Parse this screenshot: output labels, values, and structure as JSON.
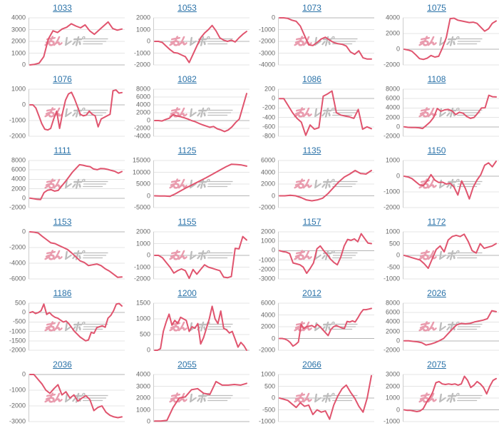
{
  "watermark": {
    "text": "みんレポ"
  },
  "style": {
    "background": "#ffffff",
    "line_color": "#e0546e",
    "grid_color": "#e4e4e4",
    "zero_line_color": "#b5b5b5",
    "axis_line_color": "#cccccc",
    "title_color": "#2a72a8",
    "tick_label_color": "#666666",
    "watermark_pink": "#e99cae",
    "watermark_gray": "#bdbdbd"
  },
  "chart_data": [
    {
      "type": "line",
      "title": "1033",
      "yticks": [
        4000,
        3000,
        2000,
        1000,
        0
      ],
      "values": [
        0,
        50,
        150,
        700,
        2200,
        2900,
        2750,
        3050,
        3200,
        3500,
        3300,
        3150,
        3400,
        2900,
        2600,
        2950,
        3300,
        3650,
        3100,
        2950,
        3050
      ]
    },
    {
      "type": "line",
      "title": "1053",
      "yticks": [
        2000,
        1000,
        0,
        -1000,
        -2000
      ],
      "values": [
        0,
        0,
        -100,
        -400,
        -700,
        -950,
        -1000,
        -1150,
        -1300,
        -1800,
        -1100,
        -400,
        300,
        700,
        1000,
        1350,
        900,
        300,
        100,
        0,
        100,
        -50,
        300,
        600,
        850
      ]
    },
    {
      "type": "line",
      "title": "1073",
      "yticks": [
        0,
        -1000,
        -2000,
        -3000,
        -4000
      ],
      "values": [
        0,
        0,
        -50,
        -200,
        -300,
        -700,
        -1500,
        -2300,
        -2350,
        -2100,
        -1800,
        -1650,
        -1900,
        -2100,
        -2200,
        -2250,
        -2400,
        -2900,
        -3100,
        -2800,
        -3400,
        -3500,
        -3500
      ]
    },
    {
      "type": "line",
      "title": "1075",
      "yticks": [
        4000,
        2000,
        0,
        -2000
      ],
      "values": [
        0,
        -100,
        -250,
        -700,
        -1200,
        -1300,
        -1150,
        -800,
        -1000,
        -900,
        200,
        1500,
        3900,
        3950,
        3700,
        3600,
        3500,
        3400,
        3450,
        3300,
        2800,
        2300,
        2600,
        3300,
        3600
      ]
    },
    {
      "type": "line",
      "title": "1076",
      "yticks": [
        1000,
        0,
        -1000,
        -2000
      ],
      "values": [
        0,
        0,
        -200,
        -700,
        -1200,
        -1550,
        -1600,
        -1500,
        -900,
        -400,
        -1500,
        -500,
        300,
        700,
        800,
        400,
        -100,
        -600,
        -700,
        -650,
        -400,
        -600,
        -700,
        -1400,
        -900,
        -800,
        -700,
        -600,
        900,
        950,
        750,
        780
      ]
    },
    {
      "type": "line",
      "title": "1082",
      "yticks": [
        8000,
        6000,
        4000,
        2000,
        0,
        -2000,
        -4000
      ],
      "values": [
        0,
        0,
        -100,
        300,
        600,
        1500,
        1200,
        1000,
        700,
        400,
        0,
        -300,
        -700,
        -1100,
        -1400,
        -1700,
        -1500,
        -2100,
        -2400,
        -2800,
        -2400,
        -1600,
        -500,
        400,
        3600,
        6900
      ]
    },
    {
      "type": "line",
      "title": "1086",
      "yticks": [
        200,
        0,
        -200,
        -400,
        -600,
        -800
      ],
      "values": [
        0,
        0,
        -150,
        -300,
        -420,
        -500,
        -780,
        -560,
        -650,
        -620,
        50,
        100,
        160,
        -300,
        -350,
        -370,
        -390,
        -420,
        -230,
        -650,
        -600,
        -640
      ]
    },
    {
      "type": "line",
      "title": "1108",
      "yticks": [
        8000,
        6000,
        4000,
        2000,
        0,
        -2000
      ],
      "values": [
        0,
        -100,
        -150,
        -150,
        -200,
        -350,
        300,
        1000,
        2000,
        3900,
        3300,
        3600,
        3700,
        3400,
        2600,
        3100,
        2900,
        2200,
        1800,
        2000,
        2900,
        4000,
        4050,
        6700,
        6400,
        6350
      ]
    },
    {
      "type": "line",
      "title": "1111",
      "yticks": [
        8000,
        6000,
        4000,
        2000,
        0,
        -2000
      ],
      "values": [
        0,
        -100,
        -250,
        -300,
        1200,
        1700,
        1800,
        1500,
        1650,
        2600,
        3500,
        4500,
        5500,
        6300,
        7100,
        7000,
        6800,
        6700,
        6200,
        6050,
        6300,
        6250,
        6100,
        5900,
        5700,
        5300,
        5650
      ]
    },
    {
      "type": "line",
      "title": "1125",
      "yticks": [
        15000,
        10000,
        5000,
        0,
        -5000
      ],
      "values": [
        0,
        -100,
        -100,
        -200,
        800,
        2000,
        3200,
        4300,
        5400,
        6500,
        7600,
        8800,
        10000,
        11200,
        12400,
        13400,
        13300,
        13100,
        12600
      ]
    },
    {
      "type": "line",
      "title": "1135",
      "yticks": [
        6000,
        4000,
        2000,
        0,
        -2000
      ],
      "values": [
        0,
        0,
        100,
        0,
        -300,
        -700,
        -850,
        -700,
        -400,
        400,
        1400,
        2400,
        3200,
        3700,
        4300,
        3800,
        3700,
        4300
      ]
    },
    {
      "type": "line",
      "title": "1150",
      "yticks": [
        1000,
        0,
        -1000,
        -2000
      ],
      "values": [
        0,
        -50,
        -150,
        -350,
        -550,
        -600,
        -300,
        100,
        -250,
        -400,
        -380,
        -500,
        -450,
        -700,
        -1200,
        -300,
        -800,
        -1450,
        -700,
        -250,
        100,
        700,
        850,
        600,
        950
      ]
    },
    {
      "type": "line",
      "title": "1153",
      "yticks": [
        0,
        -2000,
        -4000,
        -6000
      ],
      "values": [
        0,
        -50,
        -150,
        -600,
        -1000,
        -1400,
        -1500,
        -1750,
        -2000,
        -2250,
        -2700,
        -3200,
        -3700,
        -3900,
        -4300,
        -4200,
        -4100,
        -4300,
        -4700,
        -5000,
        -5400,
        -5800,
        -5750
      ]
    },
    {
      "type": "line",
      "title": "1155",
      "yticks": [
        2000,
        1000,
        0,
        -1000,
        -2000
      ],
      "values": [
        0,
        0,
        -200,
        -600,
        -1000,
        -1500,
        -1300,
        -1150,
        -1300,
        -1950,
        -1200,
        -1600,
        -1200,
        -800,
        -1000,
        -1100,
        -1200,
        -1300,
        -1850,
        -1900,
        -1800,
        600,
        550,
        1600,
        1300
      ]
    },
    {
      "type": "line",
      "title": "1157",
      "yticks": [
        2000,
        1000,
        0,
        -1000,
        -2000,
        -3000
      ],
      "values": [
        0,
        -100,
        -150,
        -300,
        -1300,
        -1400,
        -1500,
        -1750,
        -2400,
        -1900,
        -1300,
        200,
        500,
        0,
        -400,
        -900,
        -1250,
        -1500,
        -700,
        500,
        1200,
        1100,
        1250,
        950,
        1800,
        1300,
        800,
        750
      ]
    },
    {
      "type": "line",
      "title": "1172",
      "yticks": [
        1000,
        500,
        0,
        -500,
        -1000
      ],
      "values": [
        0,
        -50,
        -100,
        -150,
        -200,
        -350,
        -550,
        -150,
        250,
        400,
        150,
        650,
        800,
        850,
        800,
        900,
        600,
        200,
        100,
        500,
        300,
        350,
        400,
        500
      ]
    },
    {
      "type": "line",
      "title": "1186",
      "yticks": [
        500,
        0,
        -500,
        -1000,
        -1500,
        -2000
      ],
      "values": [
        0,
        50,
        -50,
        0,
        100,
        450,
        -100,
        0,
        -150,
        -250,
        -300,
        -400,
        -500,
        -450,
        -600,
        -800,
        -1000,
        -1150,
        -1300,
        -1400,
        -1500,
        -1450,
        -1050,
        -1100,
        -800,
        -750,
        -700,
        -780,
        -300,
        -150,
        100,
        450,
        480,
        350
      ]
    },
    {
      "type": "line",
      "title": "1200",
      "yticks": [
        1500,
        1000,
        500,
        0
      ],
      "values": [
        0,
        0,
        50,
        600,
        900,
        1150,
        800,
        950,
        850,
        1050,
        1000,
        950,
        600,
        750,
        700,
        850,
        200,
        400,
        700,
        1000,
        1400,
        1000,
        850,
        1250,
        700,
        650,
        550,
        600,
        350,
        100,
        250,
        150,
        0
      ]
    },
    {
      "type": "line",
      "title": "2012",
      "yticks": [
        6000,
        4000,
        2000,
        0,
        -2000
      ],
      "values": [
        0,
        0,
        -100,
        -300,
        -700,
        -1300,
        -1000,
        -600,
        2400,
        1700,
        2000,
        2100,
        2200,
        1900,
        2400,
        2000,
        1500,
        1000,
        500,
        1500,
        2000,
        2200,
        2000,
        1800,
        1700,
        2900,
        2800,
        3000,
        2800,
        3500,
        4300,
        4900,
        4900,
        5000,
        5100
      ]
    },
    {
      "type": "line",
      "title": "2026",
      "yticks": [
        8000,
        6000,
        4000,
        2000,
        0,
        -2000
      ],
      "values": [
        0,
        0,
        -100,
        -200,
        -400,
        -900,
        -700,
        -400,
        0,
        500,
        1500,
        2500,
        3400,
        3700,
        3600,
        3700,
        4000,
        4200,
        4400,
        4700,
        6400,
        6200
      ]
    },
    {
      "type": "line",
      "title": "2036",
      "yticks": [
        0,
        -1000,
        -2000,
        -3000
      ],
      "values": [
        0,
        0,
        -300,
        -600,
        -1000,
        -1200,
        -900,
        -650,
        -1300,
        -1100,
        -1500,
        -1300,
        -1700,
        -1500,
        -1350,
        -1600,
        -2300,
        -2100,
        -2000,
        -2400,
        -2600,
        -2700,
        -2750,
        -2700
      ]
    },
    {
      "type": "line",
      "title": "2055",
      "yticks": [
        4000,
        3000,
        2000,
        1000,
        0
      ],
      "values": [
        50,
        50,
        100,
        1200,
        2000,
        2100,
        2700,
        2800,
        2400,
        2300,
        3400,
        3100,
        3100,
        3150,
        3100,
        3250
      ]
    },
    {
      "type": "line",
      "title": "2066",
      "yticks": [
        1000,
        500,
        0,
        -500,
        -1000
      ],
      "values": [
        0,
        -50,
        -100,
        -250,
        -400,
        -200,
        -350,
        -300,
        -700,
        -500,
        -600,
        -550,
        -900,
        -300,
        100,
        400,
        550,
        250,
        0,
        -350,
        -600,
        0,
        950
      ]
    },
    {
      "type": "line",
      "title": "2075",
      "yticks": [
        3000,
        2000,
        1000,
        0,
        -1000
      ],
      "values": [
        0,
        -50,
        -50,
        -100,
        -150,
        -100,
        100,
        600,
        1000,
        1500,
        2300,
        2400,
        2200,
        2150,
        2200,
        2150,
        2200,
        2100,
        2200,
        2850,
        2500,
        1900,
        2100,
        2400,
        2200,
        1900,
        1350,
        2000,
        2500,
        2650
      ]
    }
  ]
}
